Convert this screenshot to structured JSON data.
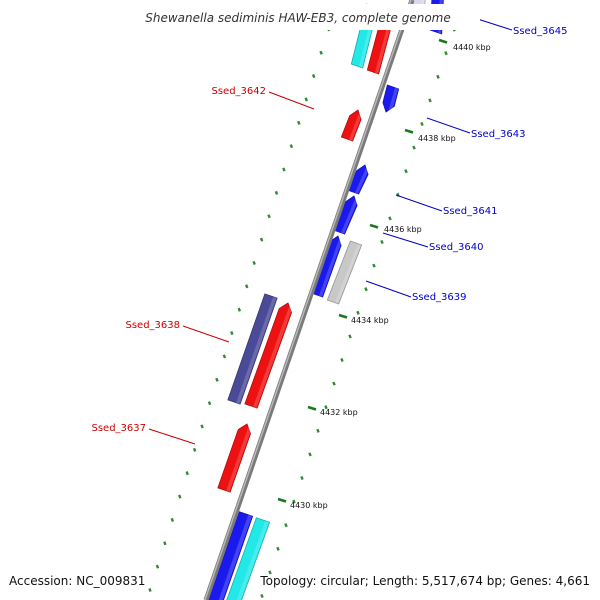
{
  "header": {
    "title": "Shewanella sediminis HAW-EB3, complete genome"
  },
  "footer": {
    "accession": "Accession: NC_009831",
    "summary": "Topology: circular; Length: 5,517,674 bp; Genes: 4,661"
  },
  "colors": {
    "plus_strand_label": "#0000cc",
    "minus_strand_label": "#cc0000",
    "backbone": "#888888",
    "tick_minor": "#2e8b2e",
    "tick_major": "#1a7a1a",
    "blue": "#1a1aee",
    "red": "#ee1111",
    "cyan": "#22e8e8",
    "gray": "#c8c8c8",
    "navy": "#4a4a99"
  },
  "scale": {
    "ticks": [
      {
        "label": "4430 kbp",
        "kbp": 4430
      },
      {
        "label": "4432 kbp",
        "kbp": 4432
      },
      {
        "label": "4434 kbp",
        "kbp": 4434
      },
      {
        "label": "4436 kbp",
        "kbp": 4436
      },
      {
        "label": "4438 kbp",
        "kbp": 4438
      },
      {
        "label": "4440 kbp",
        "kbp": 4440
      }
    ]
  },
  "gene_labels": [
    {
      "name": "Ssed_3645",
      "strand": "plus"
    },
    {
      "name": "Ssed_3643",
      "strand": "plus"
    },
    {
      "name": "Ssed_3641",
      "strand": "plus"
    },
    {
      "name": "Ssed_3640",
      "strand": "plus"
    },
    {
      "name": "Ssed_3639",
      "strand": "plus"
    },
    {
      "name": "Ssed_3642",
      "strand": "minus"
    },
    {
      "name": "Ssed_3638",
      "strand": "minus"
    },
    {
      "name": "Ssed_3637",
      "strand": "minus"
    }
  ]
}
